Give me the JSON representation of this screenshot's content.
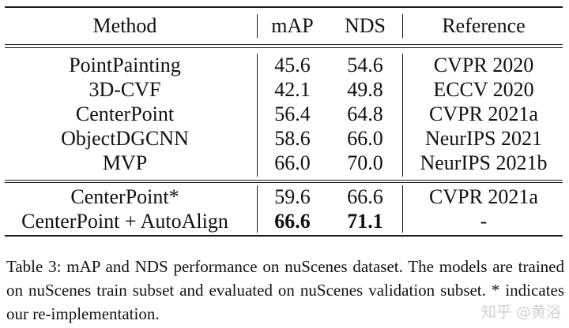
{
  "table": {
    "headers": {
      "method": "Method",
      "map": "mAP",
      "nds": "NDS",
      "reference": "Reference"
    },
    "group1": [
      {
        "method": "PointPainting",
        "map": "45.6",
        "nds": "54.6",
        "reference": "CVPR 2020"
      },
      {
        "method": "3D-CVF",
        "map": "42.1",
        "nds": "49.8",
        "reference": "ECCV 2020"
      },
      {
        "method": "CenterPoint",
        "map": "56.4",
        "nds": "64.8",
        "reference": "CVPR 2021a"
      },
      {
        "method": "ObjectDGCNN",
        "map": "58.6",
        "nds": "66.0",
        "reference": "NeurIPS 2021"
      },
      {
        "method": "MVP",
        "map": "66.0",
        "nds": "70.0",
        "reference": "NeurIPS 2021b"
      }
    ],
    "group2": [
      {
        "method": "CenterPoint*",
        "map": "59.6",
        "nds": "66.6",
        "reference": "CVPR 2021a"
      },
      {
        "method": "CenterPoint + AutoAlign",
        "map": "66.6",
        "nds": "71.1",
        "reference": "-"
      }
    ]
  },
  "caption": "Table 3: mAP and NDS performance on nuScenes dataset. The models are trained on nuScenes train subset and evaluated on nuScenes validation subset. * indicates our re-implementation.",
  "watermark": "知乎 @黄浴"
}
